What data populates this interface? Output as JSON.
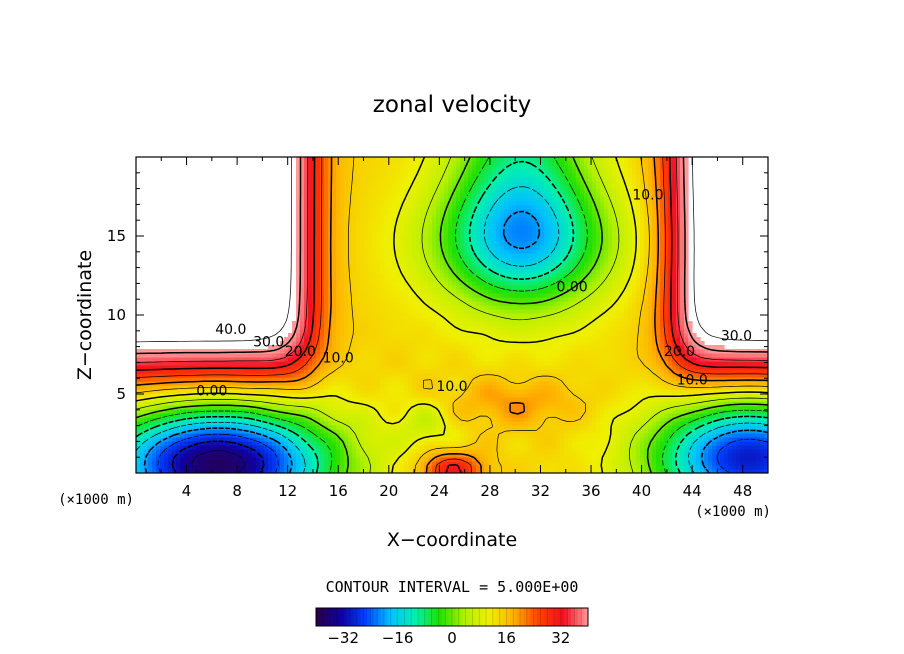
{
  "chart_data": {
    "type": "heatmap",
    "title": "zonal velocity",
    "xlabel": "X−coordinate",
    "ylabel": "Z−coordinate",
    "x_unit_label": "(×1000 m)",
    "xlim": [
      0,
      50
    ],
    "ylim": [
      0,
      20
    ],
    "x_ticks": [
      4,
      8,
      12,
      16,
      20,
      24,
      28,
      32,
      36,
      40,
      44,
      48
    ],
    "y_ticks": [
      5,
      10,
      15
    ],
    "contour_interval_text": "CONTOUR INTERVAL = 5.000E+00",
    "contour_interval": 5,
    "contour_labels": [
      {
        "text": "40.0",
        "x": 7.5,
        "y": 8.8
      },
      {
        "text": "30.0",
        "x": 10.5,
        "y": 8.0
      },
      {
        "text": "20.0",
        "x": 13,
        "y": 7.4
      },
      {
        "text": "10.0",
        "x": 16,
        "y": 7.0
      },
      {
        "text": "0.00",
        "x": 6,
        "y": 4.9
      },
      {
        "text": "10.0",
        "x": 25,
        "y": 5.2
      },
      {
        "text": "0.00",
        "x": 34.5,
        "y": 11.5
      },
      {
        "text": "10.0",
        "x": 40.5,
        "y": 17.3
      },
      {
        "text": "30.0",
        "x": 47.5,
        "y": 8.4
      },
      {
        "text": "20.0",
        "x": 43,
        "y": 7.4
      },
      {
        "text": "10.0",
        "x": 44,
        "y": 5.6
      }
    ],
    "colorbar": {
      "range": [
        -40,
        40
      ],
      "ticks": [
        -32,
        -16,
        0,
        16,
        32
      ],
      "colors": [
        "#2a0045",
        "#1000a0",
        "#0040ff",
        "#00c0ff",
        "#00f0b0",
        "#20e000",
        "#b0f000",
        "#f0f000",
        "#ffb000",
        "#ff4000",
        "#f01020",
        "#ff9a9a"
      ]
    },
    "field_description": "estimated zonal velocity field; white = out of colour range",
    "regions": [
      {
        "label": "top-left jet core",
        "x": 5,
        "y": 14,
        "value": 50
      },
      {
        "label": "top-right jet core",
        "x": 47.5,
        "y": 14,
        "value": 50
      },
      {
        "label": "upper central minimum",
        "x": 30.5,
        "y": 18,
        "value": -8
      },
      {
        "label": "bottom-left minimum",
        "x": 6.5,
        "y": 1.0,
        "value": -45
      },
      {
        "label": "bottom-right minimum",
        "x": 49,
        "y": 1.3,
        "value": -34
      },
      {
        "label": "bottom-centre maximum",
        "x": 25,
        "y": 0.3,
        "value": 30
      },
      {
        "label": "low-level central band",
        "x": 29,
        "y": 4.5,
        "value": 14
      }
    ]
  },
  "colors": {
    "axis": "#000000",
    "background": "#ffffff"
  }
}
